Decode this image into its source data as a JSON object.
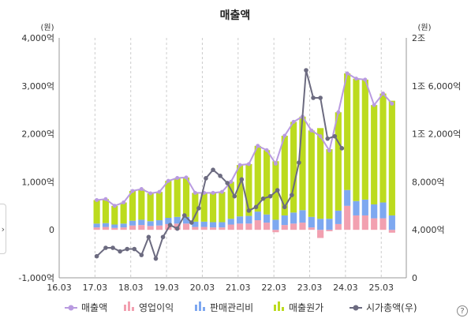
{
  "page_title": "매출액",
  "side_tab_glyph": "›",
  "help_glyph": "?",
  "chart_data": {
    "type": "bar+line",
    "title": "매출액",
    "left_unit": "(원)",
    "right_unit": "(원)",
    "x_ticks": [
      "16.03",
      "17.03",
      "18.03",
      "19.03",
      "20.03",
      "21.03",
      "22.03",
      "23.03",
      "24.03",
      "25.03"
    ],
    "y_left_ticks": [
      {
        "value": -1000,
        "label": "-1,000억"
      },
      {
        "value": 0,
        "label": "0"
      },
      {
        "value": 1000,
        "label": "1,000억"
      },
      {
        "value": 2000,
        "label": "2,000억"
      },
      {
        "value": 3000,
        "label": "3,000억"
      },
      {
        "value": 4000,
        "label": "4,000억"
      }
    ],
    "y_right_ticks": [
      {
        "value": 0,
        "label": "0"
      },
      {
        "value": 4000,
        "label": "4,000억"
      },
      {
        "value": 8000,
        "label": "8,000억"
      },
      {
        "value": 12000,
        "label": "1조 2,000억"
      },
      {
        "value": 16000,
        "label": "1조 6,000억"
      },
      {
        "value": 20000,
        "label": "2조"
      }
    ],
    "ylim_left": [
      -1000,
      4000
    ],
    "ylim_right": [
      0,
      20000
    ],
    "x_range": [
      2016.0,
      2025.7
    ],
    "quarters": [
      "17.03",
      "17.06",
      "17.09",
      "17.12",
      "18.03",
      "18.06",
      "18.09",
      "18.12",
      "19.03",
      "19.06",
      "19.09",
      "19.12",
      "20.03",
      "20.06",
      "20.09",
      "20.12",
      "21.03",
      "21.06",
      "21.09",
      "21.12",
      "22.03",
      "22.06",
      "22.09",
      "22.12",
      "23.03",
      "23.06",
      "23.09",
      "23.12",
      "24.03",
      "24.06",
      "24.09",
      "24.12",
      "25.03",
      "25.06"
    ],
    "series": [
      {
        "name": "매출액",
        "kind": "line",
        "axis": "left",
        "color": "#b99be0",
        "values": [
          620,
          640,
          500,
          570,
          810,
          850,
          760,
          790,
          1020,
          1080,
          1090,
          770,
          770,
          770,
          790,
          1000,
          1350,
          1370,
          1750,
          1660,
          1380,
          1960,
          2250,
          2360,
          2070,
          1950,
          1650,
          2450,
          3260,
          3150,
          3130,
          2600,
          2840,
          2630
        ]
      },
      {
        "name": "영업이익",
        "kind": "bar",
        "axis": "left",
        "color": "#f2a0b0",
        "values": [
          50,
          60,
          40,
          50,
          90,
          100,
          80,
          90,
          120,
          130,
          130,
          60,
          60,
          50,
          50,
          110,
          130,
          130,
          200,
          150,
          -50,
          100,
          130,
          150,
          50,
          -170,
          -30,
          120,
          500,
          300,
          300,
          240,
          240,
          -60
        ]
      },
      {
        "name": "판매관리비",
        "kind": "bar",
        "axis": "left",
        "color": "#7ea8f0",
        "values": [
          80,
          80,
          70,
          80,
          100,
          110,
          100,
          110,
          130,
          140,
          140,
          110,
          110,
          110,
          110,
          120,
          150,
          160,
          180,
          170,
          210,
          200,
          230,
          260,
          220,
          230,
          230,
          280,
          330,
          300,
          330,
          290,
          330,
          300
        ]
      },
      {
        "name": "매출원가",
        "kind": "bar",
        "axis": "left",
        "color": "#bcdb1e",
        "values": [
          490,
          500,
          390,
          440,
          620,
          640,
          580,
          590,
          770,
          810,
          820,
          600,
          600,
          610,
          630,
          770,
          1070,
          1080,
          1370,
          1340,
          1220,
          1660,
          1890,
          1950,
          1800,
          1890,
          1450,
          2050,
          2430,
          2550,
          2500,
          2070,
          2270,
          2390
        ]
      },
      {
        "name": "시가총액(우)",
        "kind": "line",
        "axis": "right",
        "color": "#6c6b80",
        "values": [
          null,
          null,
          null,
          null,
          null,
          null,
          null,
          null,
          null,
          null,
          null,
          null,
          null,
          null,
          null,
          null,
          null,
          null,
          null,
          null,
          null,
          null,
          null,
          null,
          null,
          null,
          null,
          null,
          null,
          null,
          null,
          null,
          null,
          null
        ],
        "points": [
          {
            "x": 2017.05,
            "y": 1800
          },
          {
            "x": 2017.3,
            "y": 2500
          },
          {
            "x": 2017.5,
            "y": 2500
          },
          {
            "x": 2017.7,
            "y": 2200
          },
          {
            "x": 2017.9,
            "y": 2400
          },
          {
            "x": 2018.1,
            "y": 2400
          },
          {
            "x": 2018.3,
            "y": 1900
          },
          {
            "x": 2018.5,
            "y": 3400
          },
          {
            "x": 2018.7,
            "y": 1600
          },
          {
            "x": 2018.9,
            "y": 3400
          },
          {
            "x": 2019.1,
            "y": 4400
          },
          {
            "x": 2019.3,
            "y": 4100
          },
          {
            "x": 2019.5,
            "y": 5200
          },
          {
            "x": 2019.7,
            "y": 4600
          },
          {
            "x": 2019.9,
            "y": 5800
          },
          {
            "x": 2020.1,
            "y": 8300
          },
          {
            "x": 2020.3,
            "y": 9000
          },
          {
            "x": 2020.5,
            "y": 8500
          },
          {
            "x": 2020.7,
            "y": 7900
          },
          {
            "x": 2020.9,
            "y": 6800
          },
          {
            "x": 2021.1,
            "y": 8200
          },
          {
            "x": 2021.3,
            "y": 5600
          },
          {
            "x": 2021.5,
            "y": 5900
          },
          {
            "x": 2021.7,
            "y": 6600
          },
          {
            "x": 2021.9,
            "y": 6800
          },
          {
            "x": 2022.1,
            "y": 7300
          },
          {
            "x": 2022.3,
            "y": 5900
          },
          {
            "x": 2022.5,
            "y": 6900
          },
          {
            "x": 2022.7,
            "y": 9600
          },
          {
            "x": 2022.9,
            "y": 17300
          },
          {
            "x": 2023.1,
            "y": 15000
          },
          {
            "x": 2023.3,
            "y": 15000
          },
          {
            "x": 2023.5,
            "y": 11600
          },
          {
            "x": 2023.7,
            "y": 11800
          },
          {
            "x": 2023.9,
            "y": 10800
          }
        ]
      }
    ],
    "legend": [
      {
        "name": "매출액",
        "icon": "line-dot",
        "color": "#b99be0"
      },
      {
        "name": "영업이익",
        "icon": "bars",
        "color": "#f2a0b0"
      },
      {
        "name": "판매관리비",
        "icon": "bars",
        "color": "#7ea8f0"
      },
      {
        "name": "매출원가",
        "icon": "bars",
        "color": "#bcdb1e"
      },
      {
        "name": "시가총액(우)",
        "icon": "line-dot",
        "color": "#6c6b80"
      }
    ],
    "legend_position": "bottom",
    "grid": "vertical-dashed"
  }
}
